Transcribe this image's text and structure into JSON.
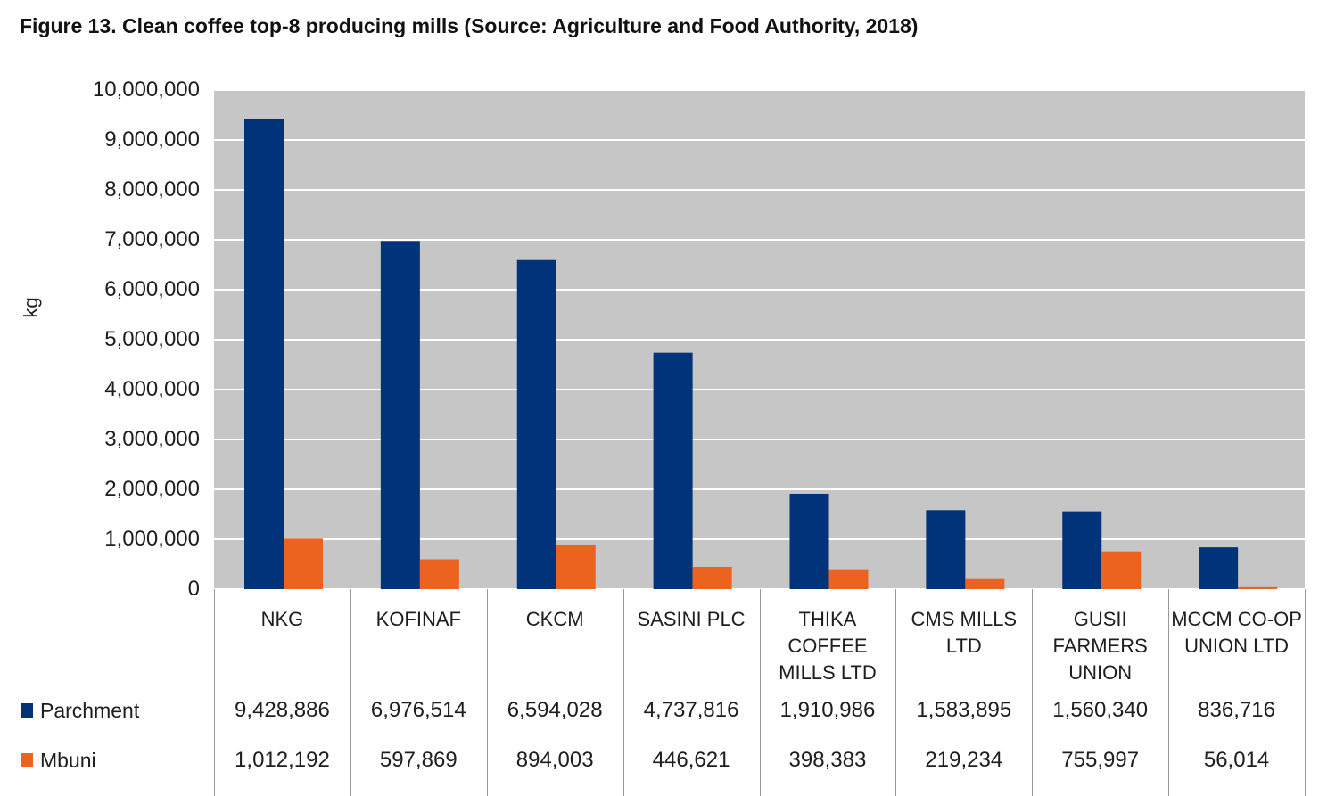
{
  "chart_data": {
    "type": "bar",
    "title": "Figure 13. Clean coffee top-8 producing mills (Source: Agriculture and Food Authority, 2018)",
    "ylabel": "kg",
    "ylim": [
      0,
      10000000
    ],
    "yticks": [
      0,
      1000000,
      2000000,
      3000000,
      4000000,
      5000000,
      6000000,
      7000000,
      8000000,
      9000000,
      10000000
    ],
    "ytick_labels": [
      "0",
      "1,000,000",
      "2,000,000",
      "3,000,000",
      "4,000,000",
      "5,000,000",
      "6,000,000",
      "7,000,000",
      "8,000,000",
      "9,000,000",
      "10,000,000"
    ],
    "grid": true,
    "legend": "bottom-left",
    "plot_background": "#c6c6c6",
    "categories": [
      "NKG",
      "KOFINAF",
      "CKCM",
      "SASINI PLC",
      "THIKA\nCOFFEE\nMILLS LTD",
      "CMS MILLS\nLTD",
      "GUSII\nFARMERS\nUNION",
      "MCCM CO-OP\nUNION LTD"
    ],
    "series": [
      {
        "name": "Parchment",
        "color": "#00337a",
        "values": [
          9428886,
          6976514,
          6594028,
          4737816,
          1910986,
          1583895,
          1560340,
          836716
        ],
        "data_labels": [
          "9,428,886",
          "6,976,514",
          "6,594,028",
          "4,737,816",
          "1,910,986",
          "1,583,895",
          "1,560,340",
          "836,716"
        ]
      },
      {
        "name": "Mbuni",
        "color": "#ec6320",
        "values": [
          1012192,
          597869,
          894003,
          446621,
          398383,
          219234,
          755997,
          56014
        ],
        "data_labels": [
          "1,012,192",
          "597,869",
          "894,003",
          "446,621",
          "398,383",
          "219,234",
          "755,997",
          "56,014"
        ]
      }
    ]
  }
}
